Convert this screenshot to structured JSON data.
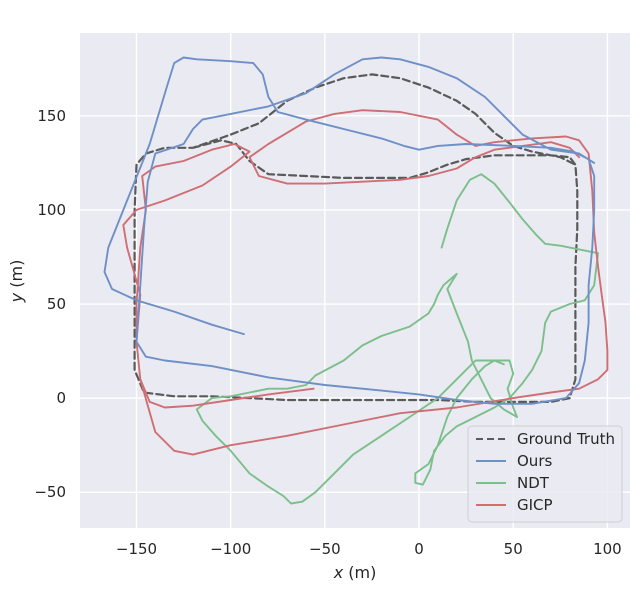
{
  "chart_data": {
    "type": "line",
    "title": "",
    "xlabel": {
      "var": "x",
      "unit": " (m)"
    },
    "ylabel": {
      "var": "y",
      "unit": " (m)"
    },
    "xlim": [
      -180,
      112
    ],
    "ylim": [
      -69,
      194
    ],
    "xticks": [
      -150,
      -100,
      -50,
      0,
      50,
      100
    ],
    "yticks": [
      -50,
      0,
      50,
      100,
      150
    ],
    "xtick_labels": [
      "−150",
      "−100",
      "−50",
      "0",
      "50",
      "100"
    ],
    "ytick_labels": [
      "−50",
      "0",
      "50",
      "100",
      "150"
    ],
    "grid": true,
    "background": "#eaeaf2",
    "legend_position": "bottom-right",
    "series": [
      {
        "name": "Ground Truth",
        "color": "#5a5a5a",
        "dash": true,
        "points": [
          [
            -120,
            133
          ],
          [
            -105,
            137
          ],
          [
            -97,
            135
          ],
          [
            -90,
            126
          ],
          [
            -80,
            119
          ],
          [
            -60,
            118
          ],
          [
            -40,
            117
          ],
          [
            -20,
            117
          ],
          [
            -5,
            117
          ],
          [
            5,
            120
          ],
          [
            15,
            124
          ],
          [
            25,
            127
          ],
          [
            40,
            129
          ],
          [
            55,
            129
          ],
          [
            70,
            129
          ],
          [
            80,
            128
          ],
          [
            83,
            124
          ],
          [
            84,
            110
          ],
          [
            84,
            90
          ],
          [
            83,
            70
          ],
          [
            83,
            50
          ],
          [
            83,
            30
          ],
          [
            83,
            10
          ],
          [
            80,
            0
          ],
          [
            70,
            -2
          ],
          [
            50,
            -2
          ],
          [
            30,
            -2
          ],
          [
            10,
            -1
          ],
          [
            -10,
            -1
          ],
          [
            -30,
            -1
          ],
          [
            -50,
            -1
          ],
          [
            -70,
            -1
          ],
          [
            -90,
            0
          ],
          [
            -110,
            1
          ],
          [
            -130,
            1
          ],
          [
            -146,
            3
          ],
          [
            -151,
            15
          ],
          [
            -151,
            40
          ],
          [
            -151,
            70
          ],
          [
            -151,
            100
          ],
          [
            -150,
            124
          ],
          [
            -145,
            130
          ],
          [
            -135,
            133
          ],
          [
            -120,
            133
          ],
          [
            -100,
            140
          ],
          [
            -85,
            146
          ],
          [
            -70,
            158
          ],
          [
            -55,
            165
          ],
          [
            -40,
            170
          ],
          [
            -25,
            172
          ],
          [
            -10,
            170
          ],
          [
            5,
            165
          ],
          [
            20,
            158
          ],
          [
            30,
            151
          ],
          [
            40,
            141
          ],
          [
            50,
            134
          ],
          [
            60,
            131
          ],
          [
            75,
            128
          ],
          [
            83,
            124
          ]
        ]
      },
      {
        "name": "Ours",
        "color": "#6f8fc7",
        "dash": false,
        "points": [
          [
            -93,
            34
          ],
          [
            -110,
            39
          ],
          [
            -130,
            46
          ],
          [
            -150,
            52
          ],
          [
            -163,
            58
          ],
          [
            -167,
            67
          ],
          [
            -165,
            80
          ],
          [
            -155,
            105
          ],
          [
            -143,
            135
          ],
          [
            -134,
            165
          ],
          [
            -130,
            178
          ],
          [
            -125,
            181
          ],
          [
            -118,
            180
          ],
          [
            -100,
            179
          ],
          [
            -88,
            178
          ],
          [
            -83,
            172
          ],
          [
            -80,
            160
          ],
          [
            -75,
            152
          ],
          [
            -60,
            148
          ],
          [
            -40,
            143
          ],
          [
            -20,
            138
          ],
          [
            -8,
            134
          ],
          [
            0,
            132
          ],
          [
            10,
            134
          ],
          [
            25,
            135
          ],
          [
            50,
            134
          ],
          [
            70,
            133
          ],
          [
            82,
            131
          ],
          [
            90,
            127
          ],
          [
            93,
            118
          ],
          [
            93,
            100
          ],
          [
            92,
            80
          ],
          [
            90,
            60
          ],
          [
            90,
            40
          ],
          [
            88,
            20
          ],
          [
            85,
            8
          ],
          [
            78,
            0
          ],
          [
            60,
            -3
          ],
          [
            40,
            -3
          ],
          [
            20,
            -1
          ],
          [
            0,
            2
          ],
          [
            -20,
            4
          ],
          [
            -50,
            7
          ],
          [
            -80,
            11
          ],
          [
            -110,
            17
          ],
          [
            -135,
            20
          ],
          [
            -145,
            22
          ],
          [
            -150,
            30
          ],
          [
            -148,
            60
          ],
          [
            -146,
            90
          ],
          [
            -144,
            115
          ],
          [
            -140,
            130
          ],
          [
            -125,
            135
          ],
          [
            -120,
            143
          ],
          [
            -115,
            148
          ],
          [
            -100,
            151
          ],
          [
            -80,
            155
          ],
          [
            -60,
            162
          ],
          [
            -45,
            172
          ],
          [
            -30,
            180
          ],
          [
            -20,
            181
          ],
          [
            -10,
            180
          ],
          [
            5,
            176
          ],
          [
            20,
            170
          ],
          [
            35,
            160
          ],
          [
            45,
            150
          ],
          [
            55,
            140
          ],
          [
            70,
            132
          ],
          [
            85,
            130
          ],
          [
            93,
            125
          ]
        ]
      },
      {
        "name": "NDT",
        "color": "#7bbf8a",
        "dash": false,
        "points": [
          [
            12,
            80
          ],
          [
            15,
            90
          ],
          [
            20,
            105
          ],
          [
            27,
            116
          ],
          [
            33,
            119
          ],
          [
            40,
            114
          ],
          [
            48,
            104
          ],
          [
            55,
            95
          ],
          [
            62,
            87
          ],
          [
            67,
            82
          ],
          [
            75,
            81
          ],
          [
            85,
            79
          ],
          [
            95,
            77
          ],
          [
            93,
            60
          ],
          [
            88,
            52
          ],
          [
            80,
            50
          ],
          [
            70,
            46
          ],
          [
            67,
            40
          ],
          [
            65,
            25
          ],
          [
            60,
            15
          ],
          [
            55,
            8
          ],
          [
            48,
            0
          ],
          [
            40,
            -5
          ],
          [
            30,
            -10
          ],
          [
            20,
            -15
          ],
          [
            14,
            -20
          ],
          [
            8,
            -28
          ],
          [
            6,
            -38
          ],
          [
            2,
            -46
          ],
          [
            -2,
            -45
          ],
          [
            -2,
            -40
          ],
          [
            5,
            -35
          ],
          [
            10,
            -25
          ],
          [
            15,
            -10
          ],
          [
            20,
            0
          ],
          [
            28,
            10
          ],
          [
            35,
            17
          ],
          [
            40,
            20
          ],
          [
            48,
            20
          ],
          [
            50,
            13
          ],
          [
            47,
            5
          ],
          [
            50,
            -5
          ],
          [
            52,
            -10
          ],
          [
            45,
            -6
          ],
          [
            38,
            0
          ],
          [
            33,
            10
          ],
          [
            28,
            20
          ],
          [
            26,
            30
          ],
          [
            20,
            45
          ],
          [
            15,
            58
          ],
          [
            20,
            66
          ],
          [
            13,
            60
          ],
          [
            10,
            55
          ],
          [
            8,
            50
          ],
          [
            5,
            45
          ],
          [
            -5,
            38
          ],
          [
            -20,
            33
          ],
          [
            -30,
            28
          ],
          [
            -40,
            20
          ],
          [
            -55,
            12
          ],
          [
            -60,
            7
          ],
          [
            -70,
            5
          ],
          [
            -80,
            5
          ],
          [
            -90,
            3
          ],
          [
            -100,
            1
          ],
          [
            -110,
            0
          ],
          [
            -118,
            -6
          ],
          [
            -115,
            -12
          ],
          [
            -108,
            -20
          ],
          [
            -100,
            -28
          ],
          [
            -90,
            -40
          ],
          [
            -80,
            -47
          ],
          [
            -72,
            -52
          ],
          [
            -68,
            -56
          ],
          [
            -62,
            -55
          ],
          [
            -55,
            -50
          ],
          [
            -45,
            -40
          ],
          [
            -35,
            -30
          ],
          [
            -20,
            -20
          ],
          [
            -5,
            -10
          ],
          [
            10,
            0
          ],
          [
            20,
            10
          ],
          [
            30,
            20
          ],
          [
            40,
            20
          ],
          [
            45,
            18
          ]
        ]
      },
      {
        "name": "GICP",
        "color": "#cf6e73",
        "dash": false,
        "points": [
          [
            -56,
            5
          ],
          [
            -80,
            2
          ],
          [
            -100,
            -1
          ],
          [
            -120,
            -4
          ],
          [
            -135,
            -5
          ],
          [
            -143,
            -2
          ],
          [
            -148,
            10
          ],
          [
            -150,
            30
          ],
          [
            -148,
            55
          ],
          [
            -155,
            80
          ],
          [
            -157,
            92
          ],
          [
            -150,
            100
          ],
          [
            -135,
            105
          ],
          [
            -115,
            113
          ],
          [
            -100,
            123
          ],
          [
            -90,
            131
          ],
          [
            -98,
            135
          ],
          [
            -110,
            132
          ],
          [
            -125,
            126
          ],
          [
            -140,
            123
          ],
          [
            -147,
            118
          ],
          [
            -145,
            100
          ],
          [
            -148,
            80
          ],
          [
            -150,
            50
          ],
          [
            -150,
            30
          ],
          [
            -148,
            10
          ],
          [
            -140,
            -18
          ],
          [
            -130,
            -28
          ],
          [
            -120,
            -30
          ],
          [
            -100,
            -25
          ],
          [
            -70,
            -20
          ],
          [
            -40,
            -14
          ],
          [
            -10,
            -8
          ],
          [
            20,
            -5
          ],
          [
            50,
            0
          ],
          [
            70,
            3
          ],
          [
            85,
            5
          ],
          [
            95,
            10
          ],
          [
            100,
            15
          ],
          [
            100,
            25
          ],
          [
            99,
            40
          ],
          [
            97,
            55
          ],
          [
            95,
            70
          ],
          [
            93,
            88
          ],
          [
            92,
            110
          ],
          [
            90,
            130
          ],
          [
            85,
            137
          ],
          [
            78,
            139
          ],
          [
            60,
            138
          ],
          [
            40,
            136
          ],
          [
            30,
            134
          ],
          [
            20,
            140
          ],
          [
            10,
            148
          ],
          [
            -10,
            152
          ],
          [
            -30,
            153
          ],
          [
            -45,
            151
          ],
          [
            -60,
            147
          ],
          [
            -80,
            135
          ],
          [
            -90,
            128
          ],
          [
            -85,
            118
          ],
          [
            -70,
            114
          ],
          [
            -50,
            114
          ],
          [
            -30,
            115
          ],
          [
            -10,
            116
          ],
          [
            5,
            118
          ],
          [
            20,
            122
          ],
          [
            30,
            128
          ],
          [
            40,
            132
          ],
          [
            55,
            134
          ],
          [
            70,
            136
          ],
          [
            80,
            133
          ],
          [
            85,
            128
          ]
        ]
      }
    ]
  }
}
